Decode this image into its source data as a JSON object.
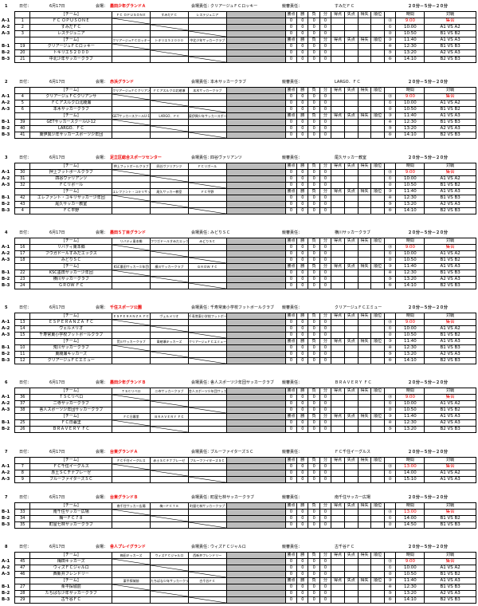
{
  "blocks": [
    {
      "no": "1",
      "date_label": "日付：",
      "date": "6月17日",
      "venue_label": "会場：",
      "venue": "墨田少年グランドＡ",
      "mgr_label": "会場責任：",
      "mgr": "クリアージュＦＣロッキー",
      "trn_label": "競審責任：",
      "trn": "すみだＦＣ",
      "fmt": "２０分－５分－２０分",
      "team_header": "[チーム]",
      "matchup_a": [
        "ＦＣ ＯＰＵＳＯＮＥ",
        "すみだＦＣ",
        "レステジュニア"
      ],
      "matchup_b": [
        "クリアージュＦＣロッキー",
        "トキリエ５２０００",
        "中北少年サッカークラブ"
      ],
      "cols": [
        "勝点",
        "勝",
        "負",
        "分",
        "得点",
        "失点",
        "得失",
        "順位"
      ],
      "ga": [
        [
          "A-1",
          "1",
          "ＦＣ ＯＰＵＳＯＮＥ"
        ],
        [
          "A-2",
          "2",
          "すみだＦＣ"
        ],
        [
          "A-3",
          "3",
          "レステジュニア"
        ]
      ],
      "gb": [
        [
          "B-1",
          "19",
          "クリアージュＦＣロッキー"
        ],
        [
          "B-2",
          "20",
          "トキリエ５２０００"
        ],
        [
          "B-3",
          "21",
          "中北少年サッカークラブ"
        ]
      ],
      "sched_head": [
        "時間",
        "対戦"
      ],
      "sched": [
        [
          "⓪",
          "9:00",
          "集合"
        ],
        [
          "①",
          "10:00",
          "A1 VS A2"
        ],
        [
          "②",
          "10:50",
          "B1 VS B2"
        ],
        [
          "③",
          "11:40",
          "A1 VS A3"
        ],
        [
          "④",
          "12:30",
          "B1 VS B3"
        ],
        [
          "⑤",
          "13:20",
          "A2 VS A3"
        ],
        [
          "⑥",
          "14:10",
          "B2 VS B3"
        ]
      ]
    },
    {
      "no": "2",
      "date_label": "日付：",
      "date": "6月17日",
      "venue_label": "会場：",
      "venue": "赤浜グランド",
      "mgr_label": "会場責任：",
      "mgr": "本木サッカークラブ",
      "trn_label": "競審責任：",
      "trn": "LARGO．ＦＣ",
      "fmt": "２０分－５分－２０分",
      "team_header": "[チーム]",
      "matchup_a": [
        "クリアージュＦＣクリアンサ",
        "ＦＣアスルクロ北綾瀬",
        "本木サッカークラブ"
      ],
      "matchup_b": [
        "GETサッカースクールU-12",
        "LARGO．ＦＣ",
        "東伊興少年サッカースポーツ少年団"
      ],
      "cols": [
        "勝点",
        "勝",
        "負",
        "分",
        "得点",
        "失点",
        "得失",
        "順位"
      ],
      "ga": [
        [
          "A-1",
          "4",
          "クリアージュＦＣクリアンサ"
        ],
        [
          "A-2",
          "5",
          "ＦＣアスルクロ北綾瀬"
        ],
        [
          "A-3",
          "6",
          "本木サッカークラブ"
        ]
      ],
      "gb": [
        [
          "B-1",
          "39",
          "GETサッカースクールU-12"
        ],
        [
          "B-2",
          "40",
          "LARGO．ＦＣ"
        ],
        [
          "B-3",
          "41",
          "東伊興少年サッカースポーツ少年団"
        ]
      ],
      "sched_head": [
        "時間",
        "対戦"
      ],
      "sched": [
        [
          "⓪",
          "9:00",
          "集合"
        ],
        [
          "①",
          "10:00",
          "A1 VS A2"
        ],
        [
          "②",
          "10:50",
          "B1 VS B2"
        ],
        [
          "③",
          "11:40",
          "A1 VS A3"
        ],
        [
          "④",
          "12:30",
          "B1 VS B3"
        ],
        [
          "⑤",
          "13:20",
          "A2 VS A3"
        ],
        [
          "⑥",
          "14:10",
          "B2 VS B3"
        ]
      ]
    },
    {
      "no": "3",
      "date_label": "日付：",
      "date": "6月17日",
      "venue_label": "会場：",
      "venue": "足立区総合スポーツセンター",
      "mgr_label": "会場責任：",
      "mgr": "四谷ヴァリアンツ",
      "trn_label": "競審責任：",
      "trn": "尾久サッカー教室",
      "fmt": "２０分－５分－２０分",
      "team_header": "[チーム]",
      "matchup_a": [
        "押上フットボールクラブ",
        "四谷ヴァリアンツ",
        "ＦＣリボール"
      ],
      "matchup_b": [
        "エレファント・コキリサッカー少年団",
        "尾久サッカー教室",
        "ＦＣ平野"
      ],
      "cols": [
        "勝点",
        "勝",
        "負",
        "分",
        "得点",
        "失点",
        "得失",
        "順位"
      ],
      "ga": [
        [
          "A-1",
          "30",
          "押上フットボールクラブ"
        ],
        [
          "A-2",
          "31",
          "四谷ヴァリアンツ"
        ],
        [
          "A-3",
          "32",
          "ＦＣリボール"
        ]
      ],
      "gb": [
        [
          "B-1",
          "42",
          "エレファント・コキリサッカー少年団"
        ],
        [
          "B-2",
          "43",
          "尾久サッカー教室"
        ],
        [
          "B-3",
          "4",
          "ＦＣ平野"
        ]
      ],
      "sched_head": [
        "時間",
        "対戦"
      ],
      "sched": [
        [
          "⓪",
          "9:00",
          "集合"
        ],
        [
          "①",
          "10:00",
          "A1 VS A2"
        ],
        [
          "②",
          "10:50",
          "B1 VS B2"
        ],
        [
          "③",
          "11:40",
          "A1 VS A3"
        ],
        [
          "④",
          "12:30",
          "B1 VS B3"
        ],
        [
          "⑤",
          "13:20",
          "A2 VS A3"
        ],
        [
          "⑥",
          "14:10",
          "B2 VS B3"
        ]
      ]
    },
    {
      "no": "4",
      "date_label": "日付：",
      "date": "6月17日",
      "venue_label": "会場：",
      "venue": "墨田５丁目グランド",
      "mgr_label": "会場責任：",
      "mgr": "みどりＳＣ",
      "trn_label": "競審責任：",
      "trn": "横川サッカークラブ",
      "fmt": "２０分－５分－２０分",
      "team_header": "[チーム]",
      "matchup_a": [
        "リバティ東本郷",
        "フウガドールすみだエックス",
        "みどりＳＣ"
      ],
      "matchup_b": [
        "KSC墨田サッカー少年団",
        "横川サッカークラブ",
        "ＧＲＯＷ ＦＣ"
      ],
      "cols": [
        "勝点",
        "勝",
        "負",
        "分",
        "得点",
        "失点",
        "得失",
        "順位"
      ],
      "ga": [
        [
          "A-1",
          "16",
          "リバティ東本郷"
        ],
        [
          "A-2",
          "17",
          "フウガドールすみだエックス"
        ],
        [
          "A-3",
          "18",
          "みどりＳＣ"
        ]
      ],
      "gb": [
        [
          "B-1",
          "22",
          "KSC墨田サッカー少年団"
        ],
        [
          "B-2",
          "23",
          "横川サッカークラブ"
        ],
        [
          "B-3",
          "24",
          "ＧＲＯＷ ＦＣ"
        ]
      ],
      "sched_head": [
        "時間",
        "対戦"
      ],
      "sched": [
        [
          "⓪",
          "9:00",
          "集合"
        ],
        [
          "①",
          "10:00",
          "A1 VS A2"
        ],
        [
          "②",
          "10:50",
          "B1 VS B2"
        ],
        [
          "③",
          "11:40",
          "A1 VS A3"
        ],
        [
          "④",
          "12:30",
          "B1 VS B3"
        ],
        [
          "⑤",
          "13:20",
          "A2 VS A3"
        ],
        [
          "⑥",
          "14:10",
          "B2 VS B3"
        ]
      ]
    },
    {
      "no": "5",
      "date_label": "日付：",
      "date": "6月17日",
      "venue_label": "会場：",
      "venue": "千住スポーツ公園",
      "mgr_label": "会場責任：",
      "mgr": "千寿常東小学校フットボールクラブ",
      "trn_label": "競審責任：",
      "trn": "クリアージュＦＣエミュー",
      "fmt": "２０分－５分－２０分",
      "team_header": "[チーム]",
      "matchup_a": [
        "ＥＳＰＥＲＡＮＺＡ ＦＣ",
        "ヴェルメリオ",
        "千寿常東小学校フットボールクラブ"
      ],
      "matchup_b": [
        "荒川サッカークラブ",
        "東綾瀬キッカーズ",
        "クリアージュＦＣエミュー"
      ],
      "cols": [
        "勝点",
        "勝",
        "負",
        "分",
        "得点",
        "失点",
        "得失",
        "順位"
      ],
      "ga": [
        [
          "A-1",
          "13",
          "ＥＳＰＥＲＡＮＺＡ ＦＣ"
        ],
        [
          "A-2",
          "14",
          "ヴェルメリオ"
        ],
        [
          "A-3",
          "15",
          "千寿常東小学校フットボールクラブ"
        ]
      ],
      "gb": [
        [
          "B-1",
          "10",
          "荒川サッカークラブ"
        ],
        [
          "B-2",
          "11",
          "東綾瀬キッカーズ"
        ],
        [
          "B-3",
          "12",
          "クリアージュＦＣエミュー"
        ]
      ],
      "sched_head": [
        "時間",
        "対戦"
      ],
      "sched": [
        [
          "⓪",
          "9:00",
          "集合"
        ],
        [
          "①",
          "10:00",
          "A1 VS A2"
        ],
        [
          "②",
          "10:50",
          "B1 VS B2"
        ],
        [
          "③",
          "11:40",
          "A1 VS A3"
        ],
        [
          "④",
          "12:30",
          "B1 VS B3"
        ],
        [
          "⑤",
          "13:20",
          "A2 VS A3"
        ],
        [
          "⑥",
          "14:10",
          "B2 VS B3"
        ]
      ]
    },
    {
      "no": "6",
      "date_label": "日付：",
      "date": "6月17日",
      "venue_label": "会場：",
      "venue": "墨田少年グランドＢ",
      "mgr_label": "会場責任：",
      "mgr": "舎人スポーツ少年団サッカークラブ",
      "trn_label": "競審責任：",
      "trn": "ＢＲＡＶＥＲＹ ＦＣ",
      "fmt": "２０分－５分－２０分",
      "team_header": "[チーム]",
      "matchup_a": [
        "ＴＳＣリベロ",
        "二寺サッカークラブ",
        "舎人スポーツ少年団サッカークラブ"
      ],
      "matchup_b": [
        "ＦＣ日暮里",
        "ＢＲＡＶＥＲＹ ＦＣ",
        ""
      ],
      "cols": [
        "勝点",
        "勝",
        "負",
        "分",
        "得点",
        "失点",
        "得失",
        "順位"
      ],
      "ga": [
        [
          "A-1",
          "36",
          "ＴＳＣリベロ"
        ],
        [
          "A-2",
          "37",
          "二寺サッカークラブ"
        ],
        [
          "A-3",
          "38",
          "舎人スポーツ少年団サッカークラブ"
        ]
      ],
      "gb": [
        [
          "B-1",
          "25",
          "ＦＣ日暮里"
        ],
        [
          "B-2",
          "26",
          "ＢＲＡＶＥＲＹ ＦＣ"
        ]
      ],
      "sched_head": [
        "時間",
        "対戦"
      ],
      "sched": [
        [
          "⓪",
          "9:00",
          "集合"
        ],
        [
          "①",
          "10:00",
          "A1 VS A2"
        ],
        [
          "②",
          "10:50",
          "B1 VS B2"
        ],
        [
          "③",
          "11:40",
          "A1 VS A3"
        ],
        [
          "④",
          "12:30",
          "A2 VS A3"
        ],
        [
          "⑤",
          "13:20",
          "B2 VS B3"
        ]
      ]
    },
    {
      "no": "7",
      "date_label": "日付：",
      "date": "6月17日",
      "venue_label": "会場：",
      "venue": "台東グランドＡ",
      "mgr_label": "会場責任：",
      "mgr": "ブルーファイターズＳＣ",
      "trn_label": "競審責任：",
      "trn": "ＦＣ千住イーグルス",
      "fmt": "２０分－５分－２０分",
      "team_header": "[チーム]",
      "matchup_a": [
        "ＦＣ千住イーグルス",
        "赤土ＳＣチナブレーゼ",
        "ブルーファイターズＳＣ"
      ],
      "cols": [
        "勝点",
        "勝",
        "負",
        "分",
        "得点",
        "失点",
        "得失",
        "順位"
      ],
      "ga": [
        [
          "A-1",
          "7",
          "ＦＣ千住イーグルス"
        ],
        [
          "A-2",
          "8",
          "赤土ＳＣチナブレーゼ"
        ],
        [
          "A-3",
          "9",
          "ブルーファイターズＳＣ"
        ]
      ],
      "sched_head": [
        "時間",
        "対戦"
      ],
      "sched": [
        [
          "⓪",
          "13:00",
          "集合"
        ],
        [
          "①",
          "14:00",
          "A1 VS A2"
        ],
        [
          "②",
          "15:10",
          "A1 VS A3"
        ],
        [
          "③",
          "16:40",
          "A2 VS A3"
        ]
      ]
    },
    {
      "no": "7",
      "date_label": "日付：",
      "date": "6月17日",
      "venue_label": "会場：",
      "venue": "台東グランドＢ",
      "mgr_label": "会場責任：",
      "mgr": "町屋七林サッカークラブ",
      "trn_label": "競審責任：",
      "trn": "南千住サッカー広場",
      "fmt": "２０分－５分－２０分",
      "team_header": "[チーム]",
      "matchup_b": [
        "南千住サッカー広場",
        "梅一ＦＣ７８",
        "町屋七林サッカークラブ"
      ],
      "cols": [
        "勝点",
        "勝",
        "負",
        "分",
        "得点",
        "失点",
        "得失",
        "順位"
      ],
      "gb": [
        [
          "B-1",
          "33",
          "南千住サッカー広場"
        ],
        [
          "B-2",
          "34",
          "梅一ＦＣ７８"
        ],
        [
          "B-3",
          "35",
          "町屋七林サッカークラブ"
        ]
      ],
      "sched_head": [
        "時間",
        "対戦"
      ],
      "sched": [
        [
          "⓪",
          "13:00",
          "集合"
        ],
        [
          "①",
          "14:00",
          "B1 VS B2"
        ],
        [
          "②",
          "14:50",
          "B1 VS B3"
        ],
        [
          "③",
          "15:40",
          "B2 VS B3"
        ]
      ]
    },
    {
      "no": "8",
      "date_label": "日付：",
      "date": "6月17日",
      "venue_label": "会場：",
      "venue": "舎人プレイグランド",
      "mgr_label": "会場責任：",
      "mgr": "ウィズＦＣジャルロ",
      "trn_label": "競審責任：",
      "trn": "古千谷ＦＣ",
      "fmt": "２０分－５分－２０分",
      "team_header": "[チーム]",
      "matchup_a": [
        "梅田キッカーズ",
        "ウィズＦＣジャルロ",
        "西新井フレンドリー"
      ],
      "matchup_b": [
        "栗平探城前",
        "たちばな少年サッカークラブ",
        "古千谷ＦＣ"
      ],
      "cols": [
        "勝点",
        "勝",
        "負",
        "分",
        "得点",
        "失点",
        "得失",
        "順位"
      ],
      "ga": [
        [
          "A-1",
          "45",
          "梅田キッカーズ"
        ],
        [
          "A-2",
          "47",
          "ウィズＦＣジャルロ"
        ],
        [
          "A-3",
          "46",
          "西新井フレンドリー"
        ]
      ],
      "gb": [
        [
          "B-1",
          "27",
          "栗平探城前"
        ],
        [
          "B-2",
          "28",
          "たちばな少年サッカークラブ"
        ],
        [
          "B-3",
          "29",
          "古千谷ＦＣ"
        ]
      ],
      "sched_head": [
        "時間",
        "対戦"
      ],
      "sched": [
        [
          "⓪",
          "9:00",
          "集合"
        ],
        [
          "①",
          "10:00",
          "A1 VS A2"
        ],
        [
          "②",
          "10:50",
          "B1 VS B2"
        ],
        [
          "③",
          "11:40",
          "A1 VS A3"
        ],
        [
          "④",
          "12:30",
          "B1 VS B3"
        ],
        [
          "⑤",
          "13:20",
          "A2 VS A3"
        ],
        [
          "⑥",
          "14:10",
          "B2 VS B3"
        ]
      ]
    }
  ]
}
